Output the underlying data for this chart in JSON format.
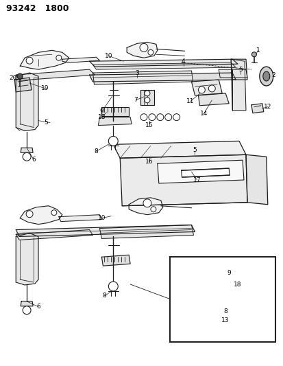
{
  "title": "93242   1800",
  "bg_color": "#ffffff",
  "fig_width": 4.14,
  "fig_height": 5.33,
  "dpi": 100,
  "line_color": "#1a1a1a",
  "line_width": 0.7,
  "label_fontsize": 6.5
}
